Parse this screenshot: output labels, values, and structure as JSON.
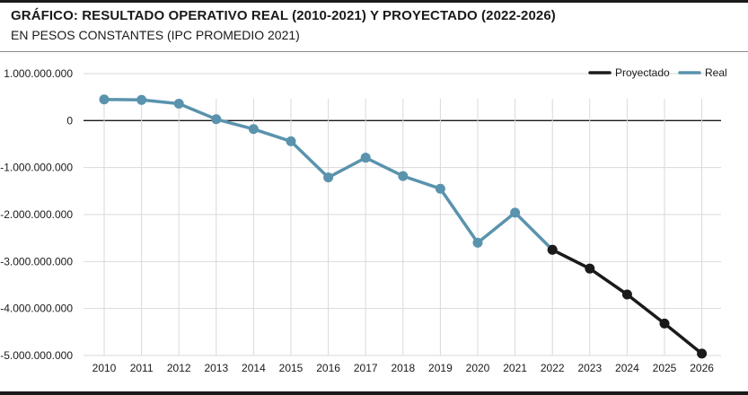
{
  "header": {
    "title": "GRÁFICO: RESULTADO OPERATIVO REAL (2010-2021) Y PROYECTADO (2022-2026)",
    "subtitle": "EN PESOS CONSTANTES (IPC PROMEDIO 2021)"
  },
  "chart_data": {
    "type": "line",
    "title": "GRÁFICO: RESULTADO OPERATIVO REAL (2010-2021) Y PROYECTADO (2022-2026)",
    "subtitle": "EN PESOS CONSTANTES (IPC PROMEDIO 2021)",
    "xlabel": "",
    "ylabel": "",
    "categories": [
      "2010",
      "2011",
      "2012",
      "2013",
      "2014",
      "2015",
      "2016",
      "2017",
      "2018",
      "2019",
      "2020",
      "2021",
      "2022",
      "2023",
      "2024",
      "2025",
      "2026"
    ],
    "ylim": [
      -5000000000,
      1000000000
    ],
    "y_ticks": [
      1000000000,
      0,
      -1000000000,
      -2000000000,
      -3000000000,
      -4000000000,
      -5000000000
    ],
    "y_tick_labels": [
      "1.000.000.000",
      "0",
      "-1.000.000.000",
      "-2.000.000.000",
      "-3.000.000.000",
      "-4.000.000.000",
      "-5.000.000.000"
    ],
    "grid": true,
    "legend_position": "top-right",
    "series": [
      {
        "name": "Real",
        "color": "#5a93ad",
        "x": [
          "2010",
          "2011",
          "2012",
          "2013",
          "2014",
          "2015",
          "2016",
          "2017",
          "2018",
          "2019",
          "2020",
          "2021",
          "2022"
        ],
        "values": [
          450000000,
          440000000,
          360000000,
          30000000,
          -180000000,
          -440000000,
          -1210000000,
          -790000000,
          -1180000000,
          -1450000000,
          -2600000000,
          -1960000000,
          -2750000000
        ]
      },
      {
        "name": "Proyectado",
        "color": "#1a1a1a",
        "x": [
          "2022",
          "2023",
          "2024",
          "2025",
          "2026"
        ],
        "values": [
          -2750000000,
          -3150000000,
          -3700000000,
          -4320000000,
          -4960000000
        ]
      }
    ],
    "legend_order": [
      "Proyectado",
      "Real"
    ]
  }
}
